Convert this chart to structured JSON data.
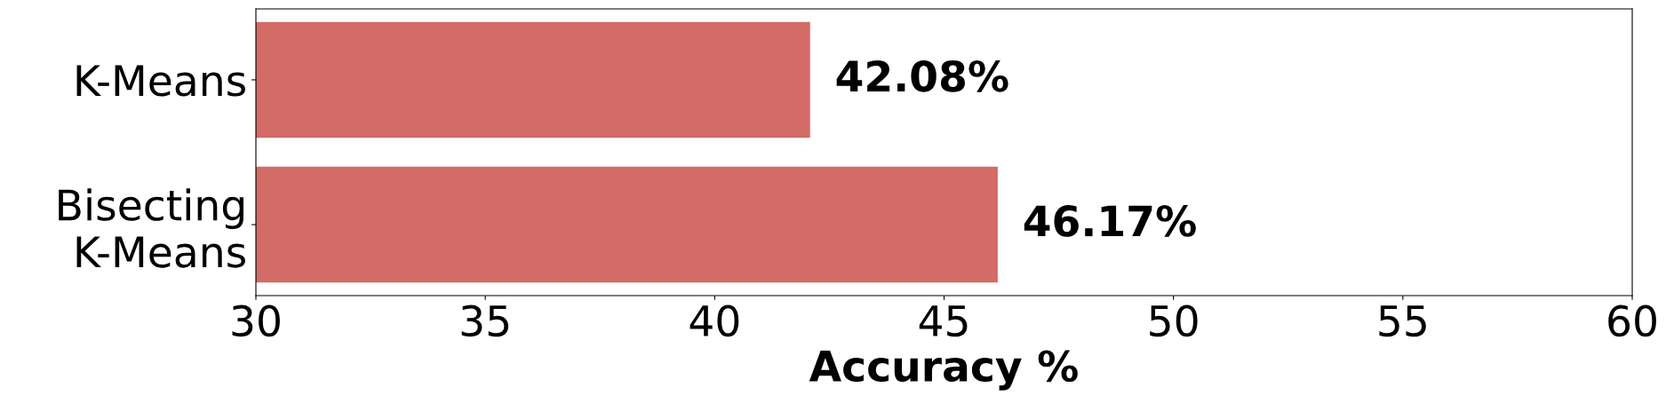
{
  "chart_data": {
    "type": "bar",
    "orientation": "horizontal",
    "categories": [
      "K-Means",
      "Bisecting\nK-Means"
    ],
    "values": [
      42.08,
      46.17
    ],
    "color": "#d36b66",
    "value_labels": [
      "42.08%",
      "46.17%"
    ],
    "xlabel": "Accuracy %",
    "xlim": [
      30,
      60
    ],
    "xticks": [
      30,
      35,
      40,
      45,
      50,
      55,
      60
    ],
    "grid": false,
    "legend": false
  }
}
